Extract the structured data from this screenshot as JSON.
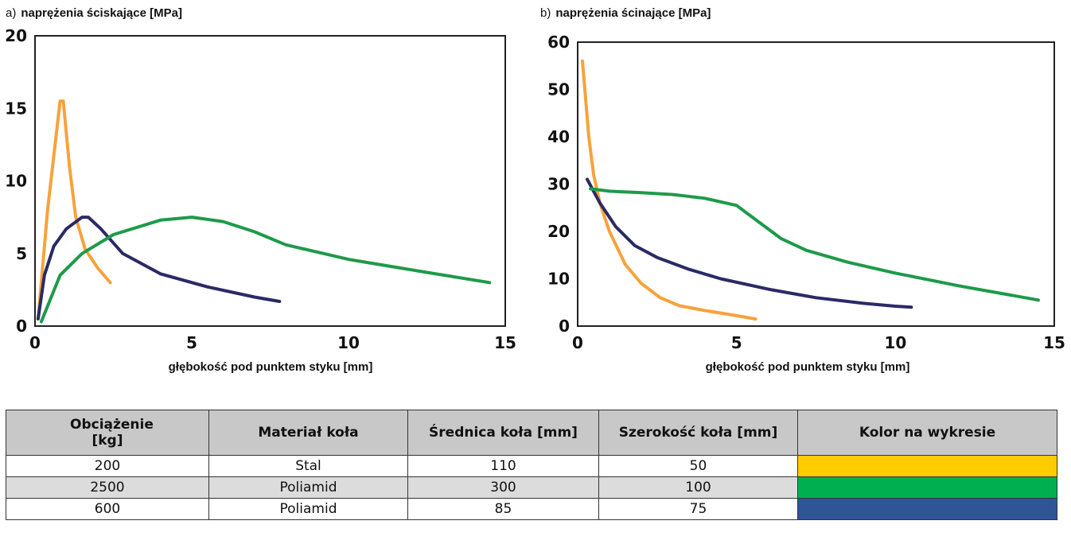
{
  "charts": {
    "a": {
      "letter": "a)",
      "title": "naprężenia ściskające [MPa]",
      "xlabel": "głębokość pod punktem styku [mm]"
    },
    "b": {
      "letter": "b)",
      "title": "naprężenia ścinające [MPa]",
      "xlabel": "głębokość pod punktem styku [mm]"
    }
  },
  "table": {
    "headers": [
      "Obciążenie [kg]",
      "Materiał koła",
      "Średnica koła [mm]",
      "Szerokość koła [mm]",
      "Kolor na wykresie"
    ],
    "rows": [
      {
        "load": "200",
        "material": "Stal",
        "diameter": "110",
        "width": "50",
        "color": "#ffcc00"
      },
      {
        "load": "2500",
        "material": "Poliamid",
        "diameter": "300",
        "width": "100",
        "color": "#00b050"
      },
      {
        "load": "600",
        "material": "Poliamid",
        "diameter": "85",
        "width": "75",
        "color": "#2f5597"
      }
    ]
  },
  "chart_data": [
    {
      "type": "line",
      "title": "naprężenia ściskające [MPa]",
      "xlabel": "głębokość pod punktem styku [mm]",
      "ylabel": "",
      "xlim": [
        0,
        15
      ],
      "ylim": [
        0,
        20
      ],
      "xticks": [
        0,
        5,
        10,
        15
      ],
      "yticks": [
        0,
        5,
        10,
        15,
        20
      ],
      "grid": false,
      "series": [
        {
          "color": "#f7a23c",
          "x": [
            0.1,
            0.4,
            0.8,
            0.9,
            1.1,
            1.3,
            1.6,
            2.0,
            2.4
          ],
          "y": [
            0.5,
            8.0,
            15.5,
            15.5,
            11.0,
            7.5,
            5.3,
            4.0,
            3.0
          ]
        },
        {
          "color": "#2a2a66",
          "x": [
            0.1,
            0.3,
            0.6,
            1.0,
            1.5,
            1.7,
            2.1,
            2.8,
            4.0,
            5.5,
            7.0,
            7.8
          ],
          "y": [
            0.5,
            3.5,
            5.5,
            6.7,
            7.5,
            7.5,
            6.7,
            5.0,
            3.6,
            2.7,
            2.0,
            1.7
          ]
        },
        {
          "color": "#1e9a4a",
          "x": [
            0.2,
            0.8,
            1.5,
            2.5,
            4.0,
            5.0,
            6.0,
            7.0,
            8.0,
            10.0,
            12.5,
            14.5
          ],
          "y": [
            0.3,
            3.5,
            5.0,
            6.3,
            7.3,
            7.5,
            7.2,
            6.5,
            5.6,
            4.6,
            3.7,
            3.0
          ]
        }
      ]
    },
    {
      "type": "line",
      "title": "naprężenia ścinające [MPa]",
      "xlabel": "głębokość pod punktem styku [mm]",
      "ylabel": "",
      "xlim": [
        0,
        15
      ],
      "ylim": [
        0,
        60
      ],
      "xticks": [
        0,
        5,
        10,
        15
      ],
      "yticks": [
        0,
        10,
        20,
        30,
        40,
        50,
        60
      ],
      "grid": false,
      "series": [
        {
          "color": "#f7a23c",
          "x": [
            0.15,
            0.25,
            0.35,
            0.5,
            0.7,
            1.0,
            1.5,
            2.0,
            2.6,
            3.2,
            4.0,
            5.0,
            5.6
          ],
          "y": [
            56,
            48,
            40,
            32,
            26,
            20,
            13,
            9,
            6,
            4.3,
            3.3,
            2.2,
            1.5
          ]
        },
        {
          "color": "#2a2a66",
          "x": [
            0.3,
            0.7,
            1.2,
            1.8,
            2.5,
            3.5,
            4.5,
            6.0,
            7.5,
            9.0,
            10.0,
            10.5
          ],
          "y": [
            31,
            26,
            21,
            17,
            14.5,
            12,
            10,
            7.8,
            6.0,
            4.8,
            4.2,
            4.0
          ]
        },
        {
          "color": "#1e9a4a",
          "x": [
            0.4,
            1.0,
            2.0,
            3.0,
            4.0,
            5.0,
            5.7,
            6.4,
            7.2,
            8.5,
            10.0,
            12.0,
            14.5
          ],
          "y": [
            29,
            28.5,
            28.2,
            27.8,
            27.0,
            25.5,
            22.0,
            18.5,
            16.0,
            13.5,
            11.2,
            8.5,
            5.5
          ]
        }
      ]
    }
  ]
}
